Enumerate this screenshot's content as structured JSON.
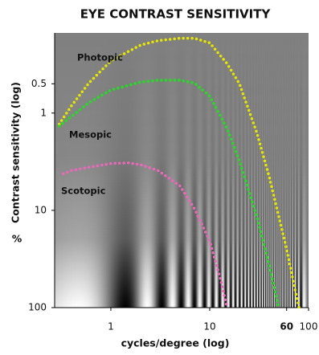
{
  "chart_data": {
    "type": "line",
    "title": "EYE CONTRAST SENSITIVITY",
    "x_label": "cycles/degree (log)",
    "y_label": "Contrast sensitivity (log)",
    "y_unit": "%",
    "x_log": true,
    "y_log": true,
    "xlim": [
      0.27,
      100
    ],
    "ylim": [
      100,
      0.15
    ],
    "xticks": [
      1,
      10,
      60,
      100
    ],
    "yticks": [
      0.5,
      1,
      10,
      100
    ],
    "series": [
      {
        "name": "Photopic",
        "color": "#e6e600",
        "x": [
          0.3,
          0.4,
          0.6,
          1,
          2,
          3,
          5,
          7,
          10,
          15,
          20,
          30,
          40,
          50,
          60,
          70,
          80
        ],
        "values": [
          1.3,
          0.84,
          0.49,
          0.29,
          0.2,
          0.18,
          0.17,
          0.17,
          0.19,
          0.31,
          0.5,
          1.6,
          4.5,
          11.6,
          25,
          53,
          100
        ]
      },
      {
        "name": "Mesopic",
        "color": "#22dd22",
        "x": [
          0.3,
          0.4,
          0.6,
          1,
          2,
          3,
          5,
          7,
          10,
          15,
          20,
          30,
          40,
          50
        ],
        "values": [
          1.36,
          1.08,
          0.78,
          0.58,
          0.48,
          0.46,
          0.46,
          0.49,
          0.67,
          1.44,
          3.1,
          11.6,
          36.5,
          100
        ]
      },
      {
        "name": "Scotopic",
        "color": "#ee66bb",
        "x": [
          0.33,
          0.4,
          0.6,
          1,
          1.5,
          2,
          3,
          5,
          7,
          10,
          13,
          15
        ],
        "values": [
          4.2,
          3.9,
          3.6,
          3.3,
          3.25,
          3.4,
          3.9,
          5.6,
          9.6,
          20.6,
          53,
          100
        ]
      }
    ]
  }
}
